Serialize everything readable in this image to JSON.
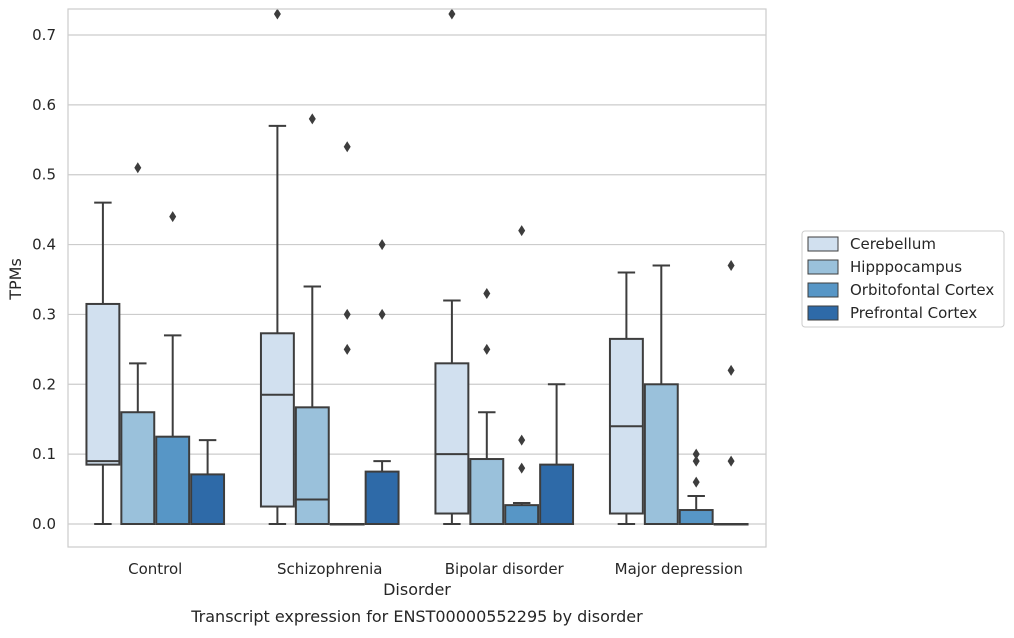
{
  "caption": "Transcript expression for ENST00000552295 by disorder",
  "chart_data": {
    "type": "box",
    "title": "",
    "xlabel": "Disorder",
    "ylabel": "TPMs",
    "ylim": [
      -0.035,
      0.77
    ],
    "yticks": [
      "0.0",
      "0.1",
      "0.2",
      "0.3",
      "0.4",
      "0.5",
      "0.6",
      "0.7"
    ],
    "ytick_values": [
      0,
      0.1,
      0.2,
      0.3,
      0.4,
      0.5,
      0.6,
      0.7
    ],
    "grid": "horizontal",
    "legend_position": "right",
    "categories": [
      "Control",
      "Schizophrenia",
      "Bipolar disorder",
      "Major depression"
    ],
    "series": [
      {
        "name": "Cerebellum",
        "color": "#d1e0ef",
        "boxes": [
          {
            "whislo": 0.0,
            "q1": 0.085,
            "med": 0.09,
            "q3": 0.315,
            "whishi": 0.46,
            "fliers": []
          },
          {
            "whislo": 0.0,
            "q1": 0.025,
            "med": 0.185,
            "q3": 0.273,
            "whishi": 0.57,
            "fliers": [
              0.73
            ]
          },
          {
            "whislo": 0.0,
            "q1": 0.015,
            "med": 0.1,
            "q3": 0.23,
            "whishi": 0.32,
            "fliers": [
              0.73
            ]
          },
          {
            "whislo": 0.0,
            "q1": 0.015,
            "med": 0.14,
            "q3": 0.265,
            "whishi": 0.36,
            "fliers": []
          }
        ]
      },
      {
        "name": "Hipppocampus",
        "color": "#9ac1db",
        "boxes": [
          {
            "whislo": 0.0,
            "q1": 0.0,
            "med": 0.0,
            "q3": 0.16,
            "whishi": 0.23,
            "fliers": [
              0.51
            ]
          },
          {
            "whislo": 0.0,
            "q1": 0.0,
            "med": 0.035,
            "q3": 0.167,
            "whishi": 0.34,
            "fliers": [
              0.58
            ]
          },
          {
            "whislo": 0.0,
            "q1": 0.0,
            "med": 0.0,
            "q3": 0.093,
            "whishi": 0.16,
            "fliers": [
              0.33,
              0.25
            ]
          },
          {
            "whislo": 0.0,
            "q1": 0.0,
            "med": 0.0,
            "q3": 0.2,
            "whishi": 0.37,
            "fliers": []
          }
        ]
      },
      {
        "name": "Orbitofontal Cortex",
        "color": "#5796c6",
        "boxes": [
          {
            "whislo": 0.0,
            "q1": 0.0,
            "med": 0.0,
            "q3": 0.125,
            "whishi": 0.27,
            "fliers": [
              0.44
            ]
          },
          {
            "whislo": 0.0,
            "q1": 0.0,
            "med": 0.0,
            "q3": 0.0,
            "whishi": 0.0,
            "fliers": [
              0.54,
              0.3,
              0.25
            ]
          },
          {
            "whislo": 0.0,
            "q1": 0.0,
            "med": 0.0,
            "q3": 0.027,
            "whishi": 0.03,
            "fliers": [
              0.42,
              0.12,
              0.08
            ]
          },
          {
            "whislo": 0.0,
            "q1": 0.0,
            "med": 0.0,
            "q3": 0.02,
            "whishi": 0.04,
            "fliers": [
              0.1,
              0.09,
              0.06
            ]
          }
        ]
      },
      {
        "name": "Prefrontal Cortex",
        "color": "#2e6aa8",
        "boxes": [
          {
            "whislo": 0.0,
            "q1": 0.0,
            "med": 0.0,
            "q3": 0.071,
            "whishi": 0.12,
            "fliers": []
          },
          {
            "whislo": 0.0,
            "q1": 0.0,
            "med": 0.0,
            "q3": 0.075,
            "whishi": 0.09,
            "fliers": [
              0.4,
              0.3
            ]
          },
          {
            "whislo": 0.0,
            "q1": 0.0,
            "med": 0.0,
            "q3": 0.085,
            "whishi": 0.2,
            "fliers": []
          },
          {
            "whislo": 0.0,
            "q1": 0.0,
            "med": 0.0,
            "q3": 0.0,
            "whishi": 0.0,
            "fliers": [
              0.37,
              0.22,
              0.09
            ]
          }
        ]
      }
    ]
  }
}
